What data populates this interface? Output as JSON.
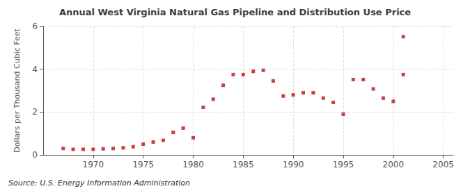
{
  "chart_data": {
    "type": "scatter",
    "title": "Annual West Virginia Natural Gas Pipeline and Distribution Use Price",
    "ylabel": "Dollars per Thousand Cubic Feet",
    "source": "Source: U.S. Energy Information Administration",
    "x": [
      1967,
      1968,
      1969,
      1970,
      1971,
      1972,
      1973,
      1974,
      1975,
      1976,
      1977,
      1978,
      1979,
      1980,
      1981,
      1982,
      1983,
      1984,
      1985,
      1986,
      1987,
      1988,
      1989,
      1990,
      1991,
      1992,
      1993,
      1994,
      1995,
      1996,
      1997,
      1998,
      1999,
      2000,
      2001,
      2001
    ],
    "values": [
      0.3,
      0.26,
      0.26,
      0.26,
      0.28,
      0.3,
      0.33,
      0.38,
      0.5,
      0.6,
      0.68,
      1.05,
      1.25,
      0.8,
      2.22,
      2.6,
      3.25,
      3.75,
      3.75,
      3.9,
      3.95,
      3.45,
      2.75,
      2.8,
      2.9,
      2.9,
      2.65,
      2.45,
      1.9,
      3.52,
      3.52,
      3.08,
      2.65,
      2.5,
      3.75,
      5.52
    ],
    "color": "#bb1111",
    "marker": "square",
    "xlim": [
      1965,
      2006
    ],
    "xticks": [
      1970,
      1975,
      1980,
      1985,
      1990,
      1995,
      2000,
      2005
    ],
    "ylim": [
      0,
      6
    ],
    "yticks": [
      0,
      2,
      4,
      6
    ],
    "grid": true
  }
}
